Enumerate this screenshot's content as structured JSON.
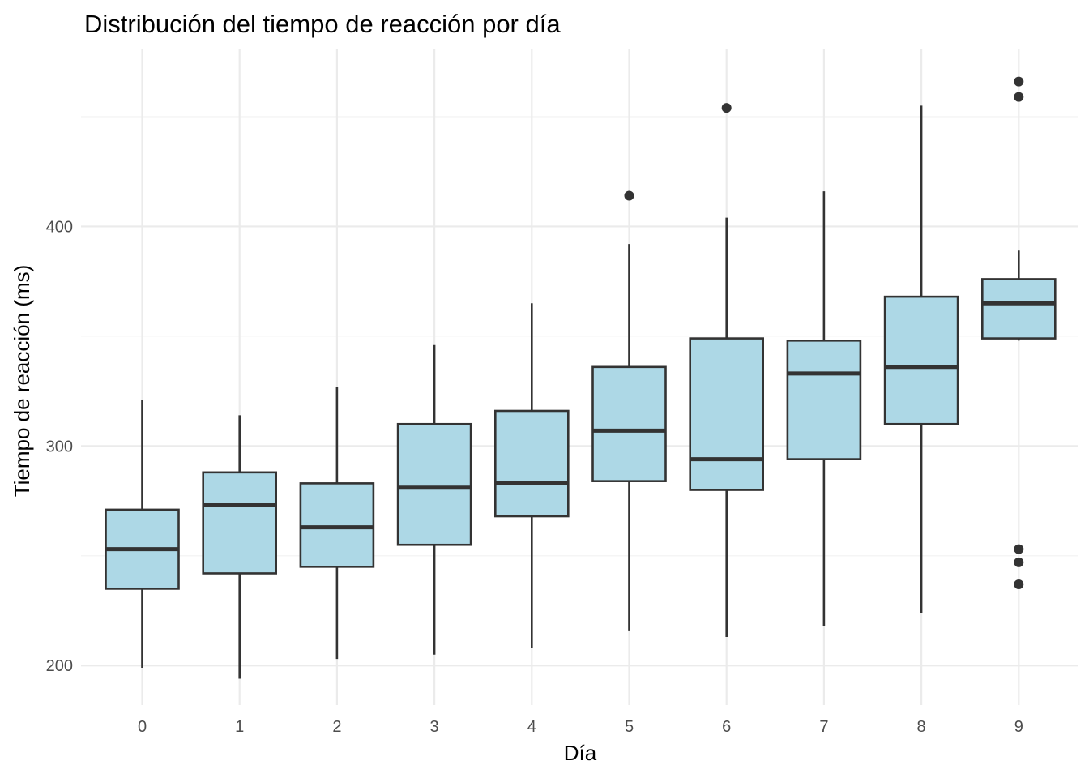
{
  "chart_data": {
    "type": "boxplot",
    "title": "Distribución del tiempo de reacción por día",
    "xlabel": "Día",
    "ylabel": "Tiempo de reacción (ms)",
    "categories": [
      "0",
      "1",
      "2",
      "3",
      "4",
      "5",
      "6",
      "7",
      "8",
      "9"
    ],
    "ylim": [
      182,
      481
    ],
    "y_ticks": [
      200,
      300,
      400
    ],
    "grid": true,
    "box_fill": "#ADD8E6",
    "line_color": "#333333",
    "boxes": [
      {
        "day": "0",
        "whisker_low": 199,
        "q1": 235,
        "median": 253,
        "q3": 271,
        "whisker_high": 321,
        "outliers": []
      },
      {
        "day": "1",
        "whisker_low": 194,
        "q1": 242,
        "median": 273,
        "q3": 288,
        "whisker_high": 314,
        "outliers": []
      },
      {
        "day": "2",
        "whisker_low": 203,
        "q1": 245,
        "median": 263,
        "q3": 283,
        "whisker_high": 327,
        "outliers": []
      },
      {
        "day": "3",
        "whisker_low": 205,
        "q1": 255,
        "median": 281,
        "q3": 310,
        "whisker_high": 346,
        "outliers": []
      },
      {
        "day": "4",
        "whisker_low": 208,
        "q1": 268,
        "median": 283,
        "q3": 316,
        "whisker_high": 365,
        "outliers": []
      },
      {
        "day": "5",
        "whisker_low": 216,
        "q1": 284,
        "median": 307,
        "q3": 336,
        "whisker_high": 392,
        "outliers": [
          414
        ]
      },
      {
        "day": "6",
        "whisker_low": 213,
        "q1": 280,
        "median": 294,
        "q3": 349,
        "whisker_high": 404,
        "outliers": [
          454
        ]
      },
      {
        "day": "7",
        "whisker_low": 218,
        "q1": 294,
        "median": 333,
        "q3": 348,
        "whisker_high": 416,
        "outliers": []
      },
      {
        "day": "8",
        "whisker_low": 224,
        "q1": 310,
        "median": 336,
        "q3": 368,
        "whisker_high": 455,
        "outliers": []
      },
      {
        "day": "9",
        "whisker_low": 348,
        "q1": 349,
        "median": 365,
        "q3": 376,
        "whisker_high": 389,
        "outliers": [
          466,
          459,
          253,
          247,
          237
        ]
      }
    ]
  }
}
